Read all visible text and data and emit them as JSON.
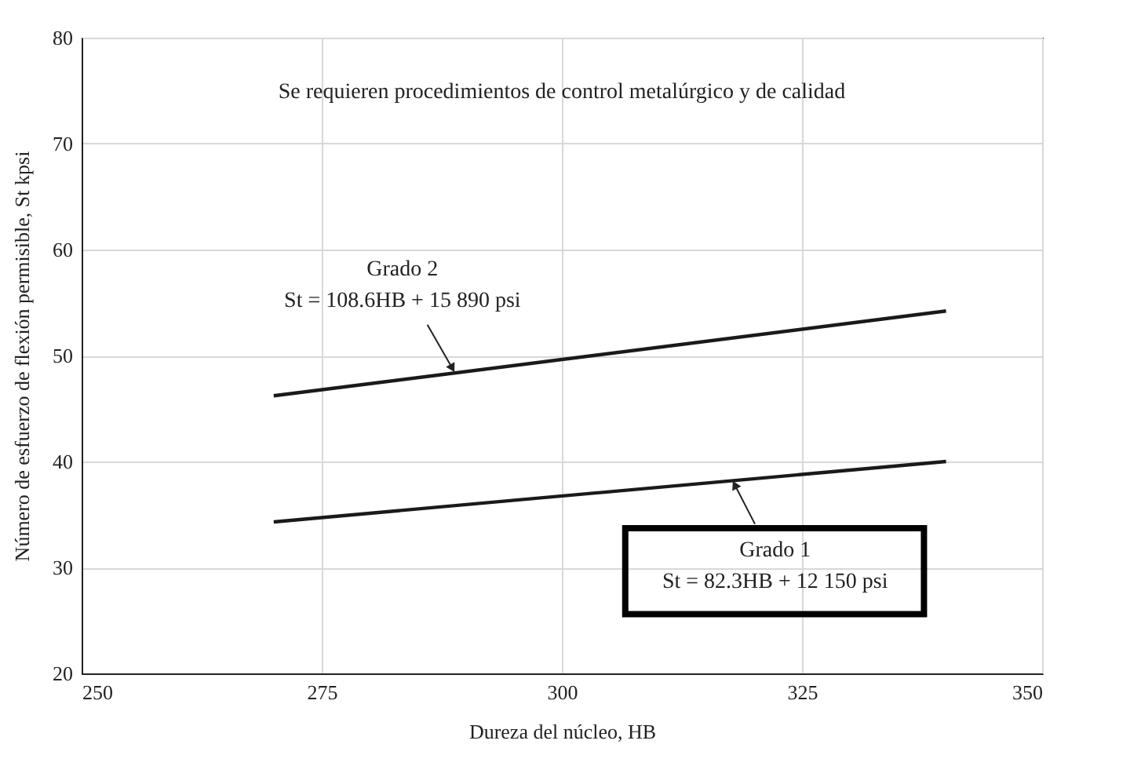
{
  "chart_data": {
    "type": "line",
    "xlabel": "Dureza del núcleo, HB",
    "ylabel": "Número de esfuerzo de flexión permisible, St kpsi",
    "x": [
      270,
      340
    ],
    "series": [
      {
        "color": "#1a1a1a",
        "values": [
          46.2,
          54.2
        ]
      },
      {
        "color": "#1a1a1a",
        "values": [
          34.3,
          40.0
        ]
      }
    ],
    "annotations": [
      "Se requieren procedimientos de control metalúrgico y de calidad",
      {
        "text": "Grado 2\nSt = 108.6HB + 15 890 psi",
        "x": 288.6,
        "y": 48.8
      },
      {
        "text": "Grado 1\nSt = 82.3HB + 12 150 psi",
        "x": 318.0,
        "y": 37.8
      }
    ],
    "xlim": [
      250,
      350
    ],
    "xticks": [
      250,
      275,
      300,
      325,
      350
    ],
    "ylim": [
      20,
      80
    ],
    "yticks": [
      20,
      30,
      40,
      50,
      60,
      70,
      80
    ],
    "grid": true,
    "marker": "none",
    "line_style": "solid"
  }
}
